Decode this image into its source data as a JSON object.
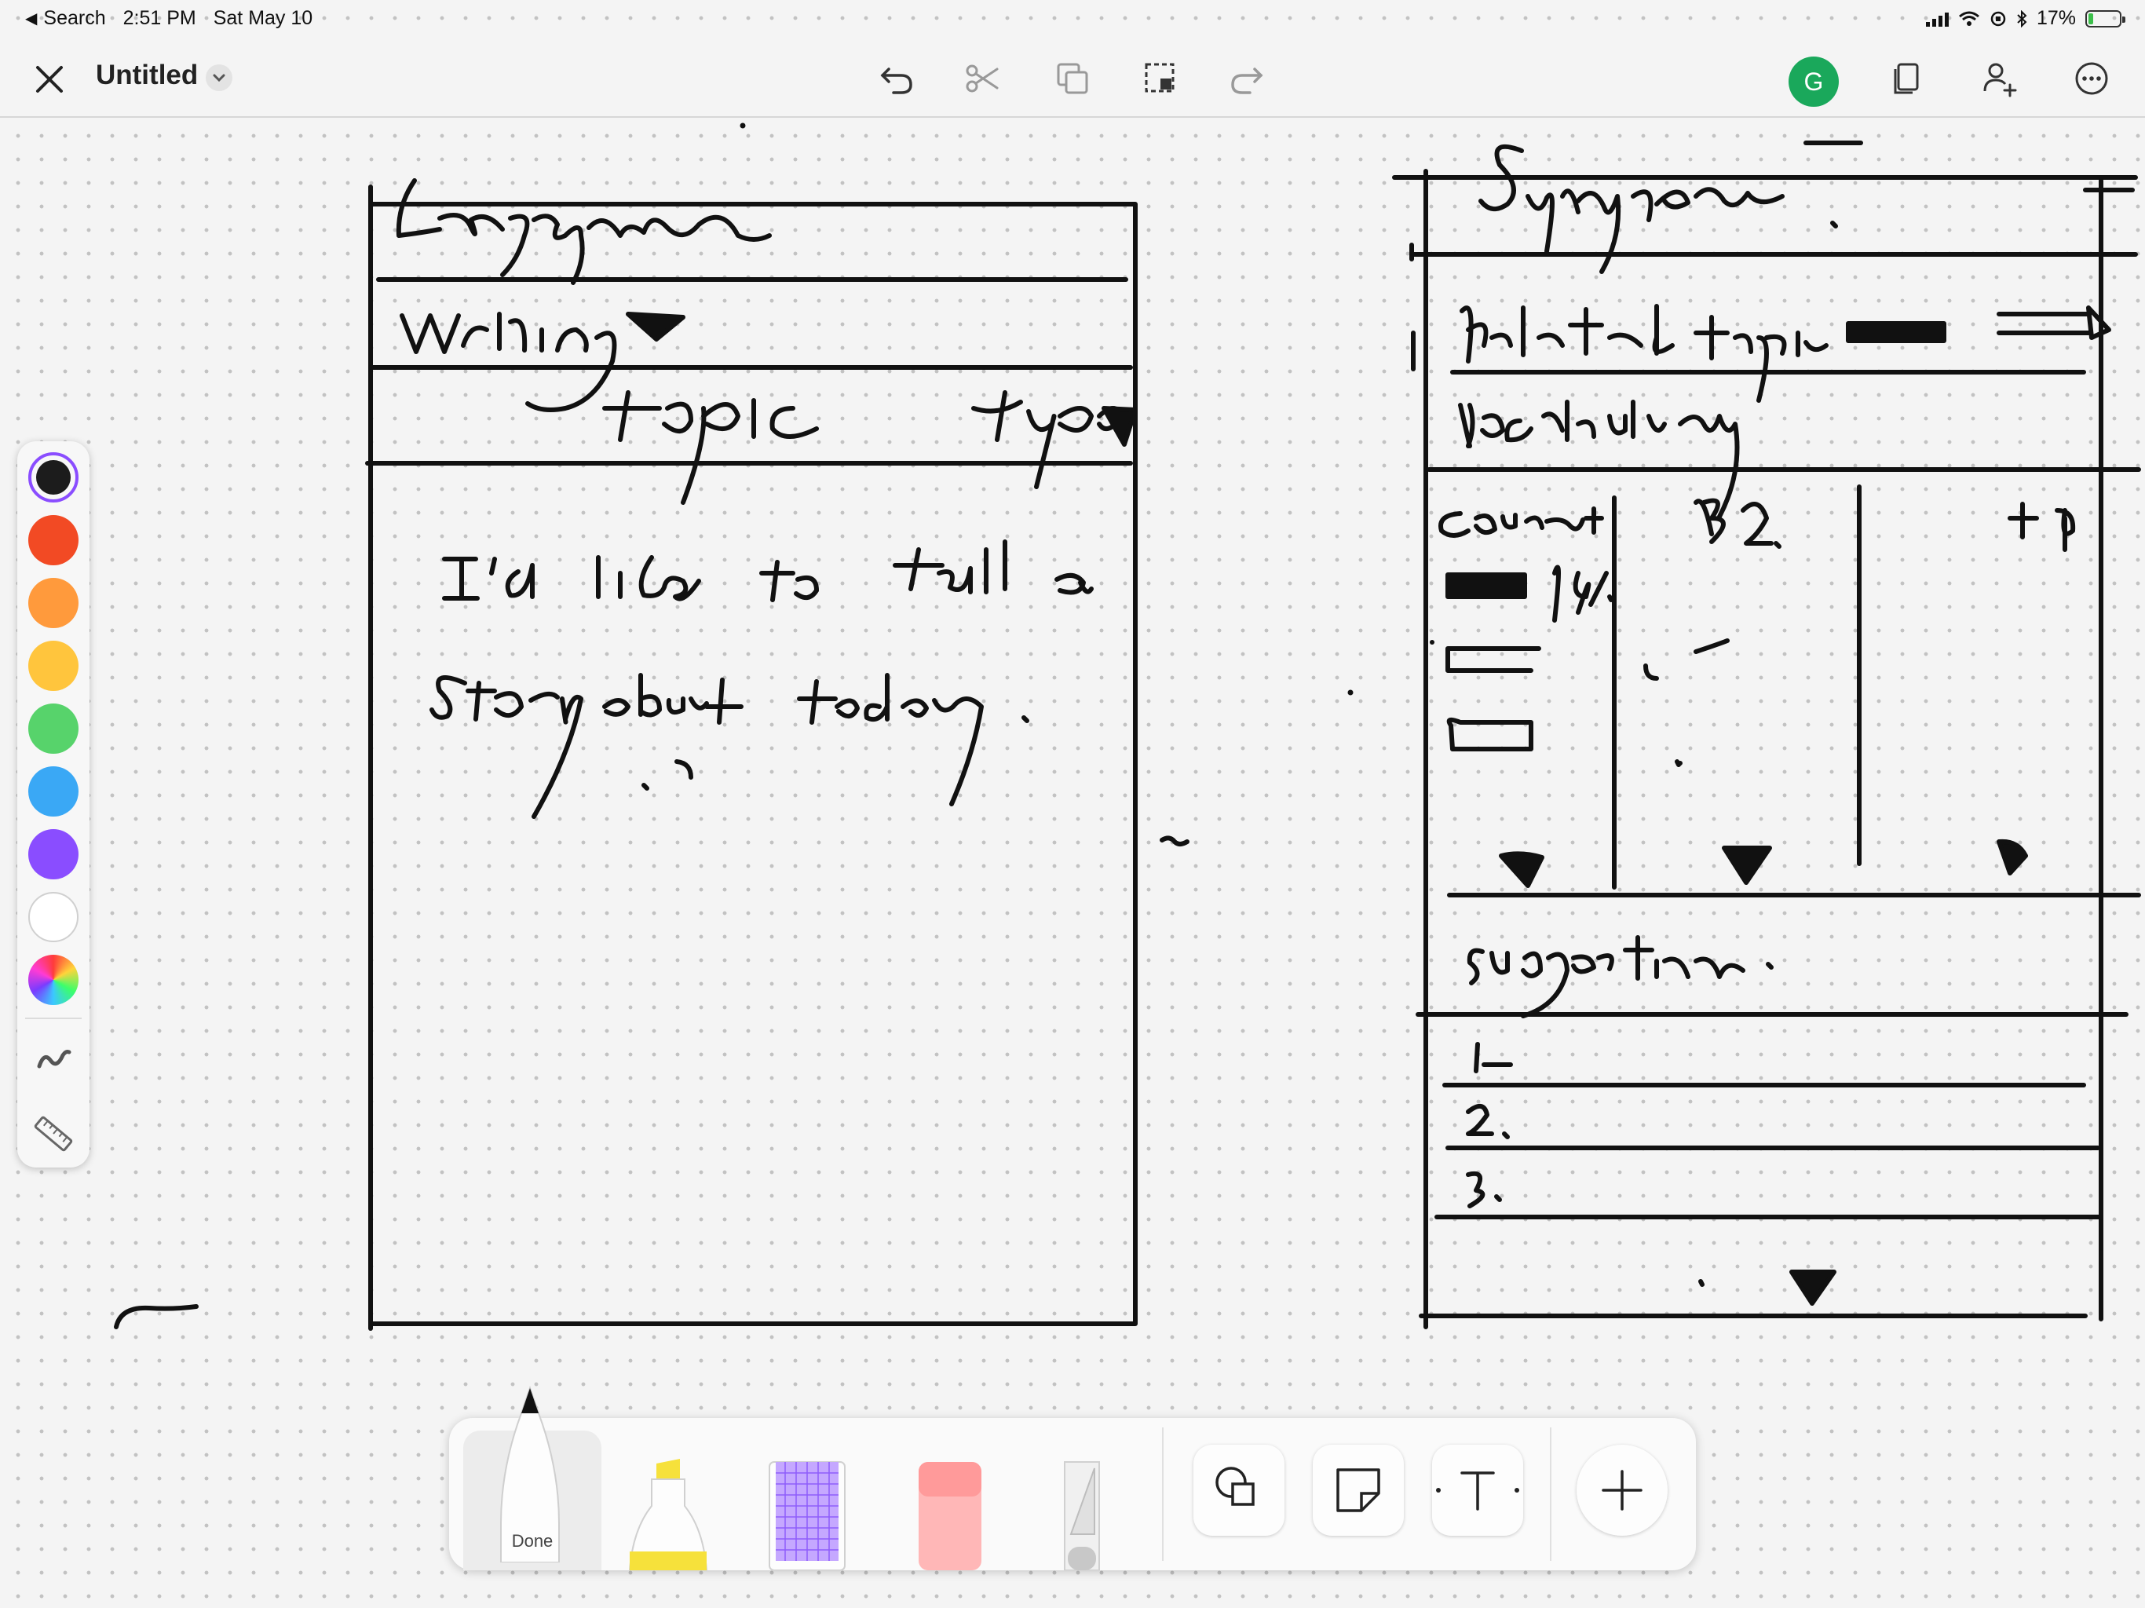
{
  "status_bar": {
    "back_label": "Search",
    "time": "2:51 PM",
    "date": "Sat May 10",
    "battery_percent_label": "17%",
    "battery_level": 0.17
  },
  "toolbar": {
    "title": "Untitled",
    "avatar_initial": "G",
    "avatar_color": "#1aa85b",
    "icons": [
      "close-icon",
      "chevron-down-icon",
      "undo-icon",
      "scissors-icon",
      "duplicate-icon",
      "lasso-select-icon",
      "redo-icon",
      "pages-icon",
      "add-person-icon",
      "more-icon"
    ]
  },
  "palette": {
    "colors": [
      "#1c1c1c",
      "#f24a24",
      "#ff9a3c",
      "#ffc53d",
      "#57d36b",
      "#3aa8f5",
      "#8a4dff",
      "#ffffff",
      "rainbow"
    ],
    "selected_color": "#1c1c1c",
    "tools": [
      "stroke-style-icon",
      "ruler-icon"
    ]
  },
  "tool_tray": {
    "done_label": "Done",
    "tools": [
      "pen",
      "highlighter",
      "pattern-brush",
      "eraser",
      "lasso-knife",
      "shapes",
      "sticky-note",
      "text",
      "add"
    ]
  }
}
